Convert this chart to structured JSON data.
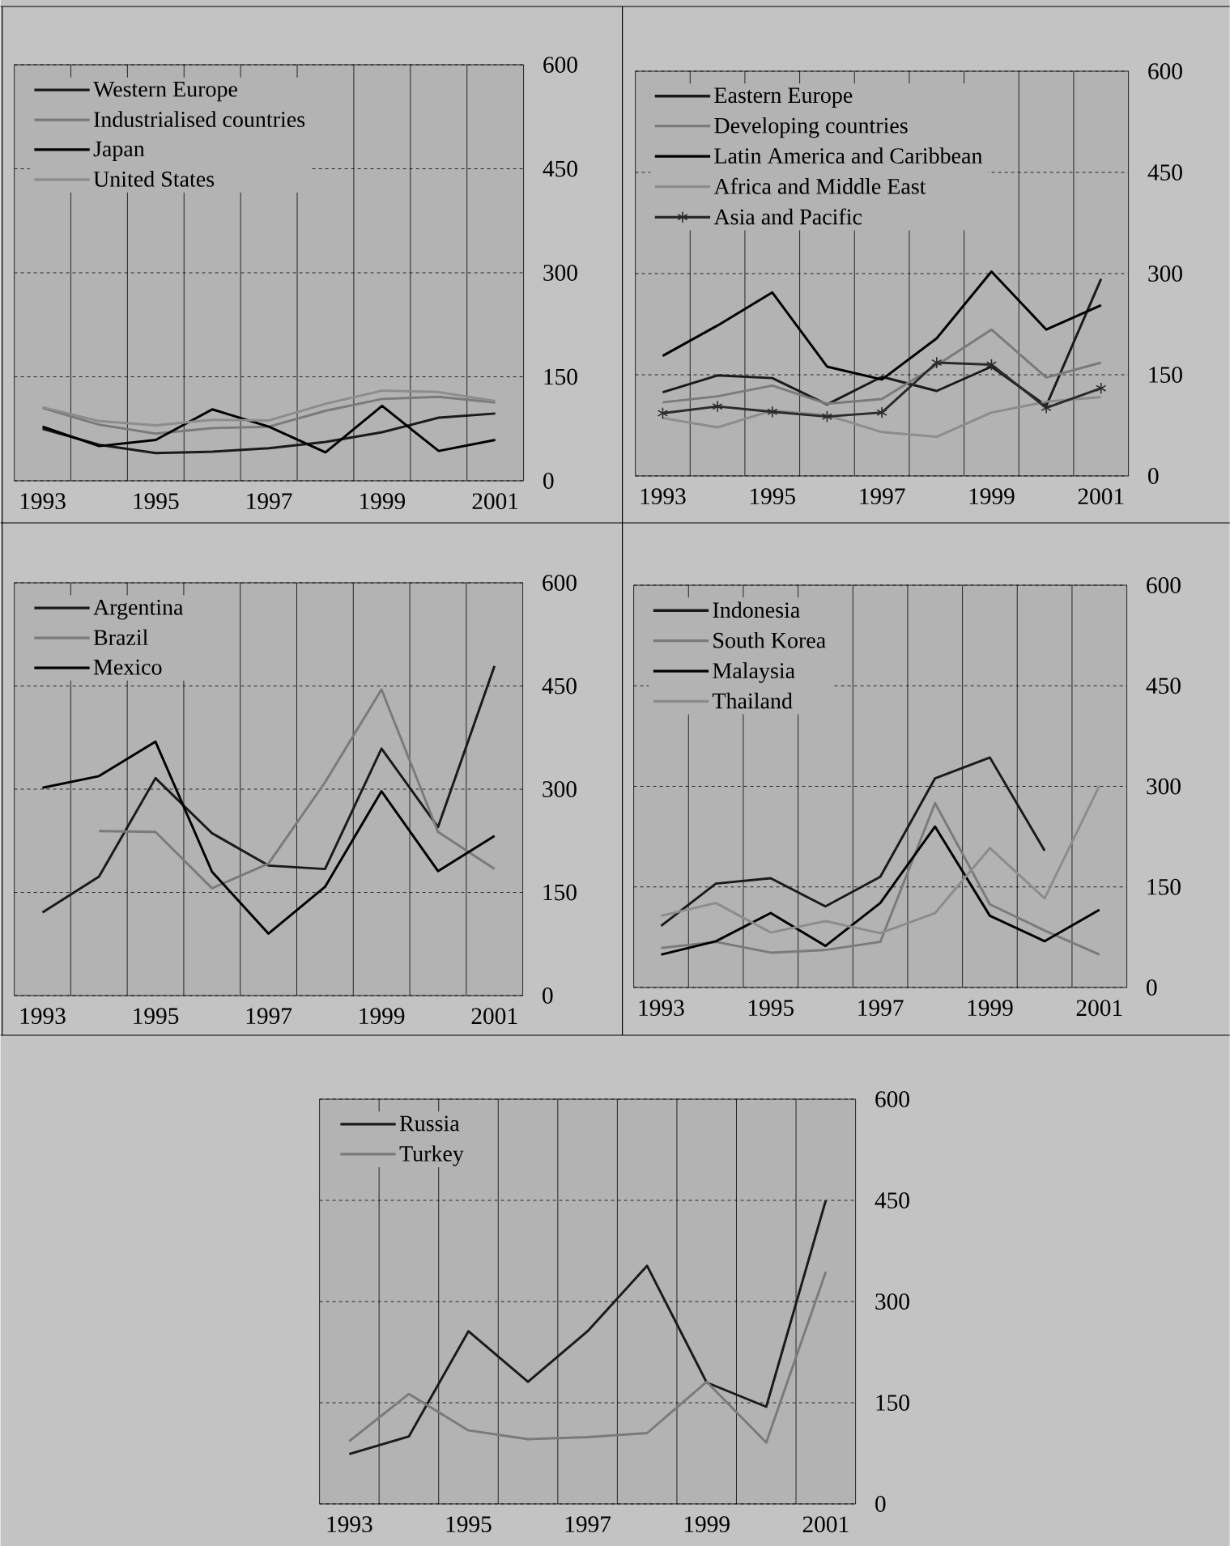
{
  "chart_data": [
    {
      "type": "line",
      "x": [
        1993,
        1994,
        1995,
        1996,
        1997,
        1998,
        1999,
        2000,
        2001
      ],
      "xlim": [
        1992.5,
        2001.5
      ],
      "ylim": [
        0,
        600
      ],
      "xticks": [
        1993,
        1995,
        1997,
        1999,
        2001,
        {
          "value": 1993.5,
          "label": null
        },
        {
          "value": 1994.5,
          "label": null
        },
        {
          "value": 1995.5,
          "label": null
        },
        {
          "value": 1996.5,
          "label": null
        },
        {
          "value": 1997.5,
          "label": null
        },
        {
          "value": 1998.5,
          "label": null
        },
        {
          "value": 1999.5,
          "label": null
        },
        {
          "value": 2000.5,
          "label": null
        }
      ],
      "yticks": [
        0,
        150,
        300,
        450,
        600
      ],
      "grid": true,
      "legend": "top left",
      "marker": "none",
      "series": [
        {
          "name": "Western Europe",
          "color": "#1a1a1a",
          "values": [
            75,
            52,
            40,
            42,
            47,
            56,
            70,
            91,
            97
          ]
        },
        {
          "name": "Industrialised countries",
          "color": "#7a7a7a",
          "values": [
            105,
            81,
            68,
            76,
            78,
            101,
            118,
            121,
            113
          ]
        },
        {
          "name": "Japan",
          "color": "#000000",
          "values": [
            78,
            50,
            59,
            103,
            78,
            41,
            108,
            43,
            59
          ]
        },
        {
          "name": "United States",
          "color": "#8c8c8c",
          "values": [
            106,
            86,
            80,
            88,
            87,
            111,
            130,
            128,
            115
          ]
        }
      ]
    },
    {
      "type": "line",
      "x": [
        1993,
        1994,
        1995,
        1996,
        1997,
        1998,
        1999,
        2000,
        2001
      ],
      "xlim": [
        1992.5,
        2001.5
      ],
      "ylim": [
        0,
        600
      ],
      "xticks": [
        1993,
        1995,
        1997,
        1999,
        2001,
        {
          "value": 1993.5,
          "label": null
        },
        {
          "value": 1994.5,
          "label": null
        },
        {
          "value": 1995.5,
          "label": null
        },
        {
          "value": 1996.5,
          "label": null
        },
        {
          "value": 1997.5,
          "label": null
        },
        {
          "value": 1998.5,
          "label": null
        },
        {
          "value": 1999.5,
          "label": null
        },
        {
          "value": 2000.5,
          "label": null
        }
      ],
      "yticks": [
        0,
        150,
        300,
        450,
        600
      ],
      "grid": true,
      "legend": "top left",
      "marker": "none",
      "series": [
        {
          "name": "Eastern Europe",
          "color": "#1a1a1a",
          "values": [
            124,
            149,
            145,
            106,
            147,
            126,
            162,
            104,
            292
          ]
        },
        {
          "name": "Developing countries",
          "color": "#7a7a7a",
          "values": [
            109,
            118,
            134,
            107,
            114,
            164,
            217,
            146,
            168
          ]
        },
        {
          "name": "Latin America and Caribbean",
          "color": "#000000",
          "values": [
            178,
            223,
            272,
            162,
            143,
            204,
            303,
            217,
            253
          ]
        },
        {
          "name": "Africa and Middle East",
          "color": "#8c8c8c",
          "values": [
            86,
            72,
            97,
            90,
            65,
            58,
            94,
            110,
            117
          ]
        },
        {
          "name": "Asia and Pacific",
          "color": "#2a2a2a",
          "marker": "cross",
          "values": [
            93,
            103,
            95,
            88,
            94,
            168,
            165,
            101,
            130
          ]
        }
      ]
    },
    {
      "type": "line",
      "x": [
        1993,
        1994,
        1995,
        1996,
        1997,
        1998,
        1999,
        2000,
        2001
      ],
      "xlim": [
        1992.5,
        2001.5
      ],
      "ylim": [
        0,
        600
      ],
      "xticks": [
        1993,
        1995,
        1997,
        1999,
        2001,
        {
          "value": 1993.5,
          "label": null
        },
        {
          "value": 1994.5,
          "label": null
        },
        {
          "value": 1995.5,
          "label": null
        },
        {
          "value": 1996.5,
          "label": null
        },
        {
          "value": 1997.5,
          "label": null
        },
        {
          "value": 1998.5,
          "label": null
        },
        {
          "value": 1999.5,
          "label": null
        },
        {
          "value": 2000.5,
          "label": null
        }
      ],
      "yticks": [
        0,
        150,
        300,
        450,
        600
      ],
      "grid": true,
      "legend": "top left",
      "marker": "none",
      "series": [
        {
          "name": "Argentina",
          "color": "#1a1a1a",
          "values": [
            121,
            173,
            316,
            236,
            189,
            184,
            359,
            245,
            479
          ]
        },
        {
          "name": "Brazil",
          "color": "#7a7a7a",
          "values": [
            null,
            239,
            238,
            156,
            192,
            310,
            445,
            238,
            184
          ]
        },
        {
          "name": "Mexico",
          "color": "#000000",
          "values": [
            302,
            319,
            369,
            180,
            90,
            158,
            297,
            181,
            232
          ]
        }
      ]
    },
    {
      "type": "line",
      "x": [
        1993,
        1994,
        1995,
        1996,
        1997,
        1998,
        1999,
        2000,
        2001
      ],
      "xlim": [
        1992.5,
        2001.5
      ],
      "ylim": [
        0,
        600
      ],
      "xticks": [
        1993,
        1995,
        1997,
        1999,
        2001,
        {
          "value": 1993.5,
          "label": null
        },
        {
          "value": 1994.5,
          "label": null
        },
        {
          "value": 1995.5,
          "label": null
        },
        {
          "value": 1996.5,
          "label": null
        },
        {
          "value": 1997.5,
          "label": null
        },
        {
          "value": 1998.5,
          "label": null
        },
        {
          "value": 1999.5,
          "label": null
        },
        {
          "value": 2000.5,
          "label": null
        }
      ],
      "yticks": [
        0,
        150,
        300,
        450,
        600
      ],
      "grid": true,
      "legend": "top left",
      "marker": "none",
      "series": [
        {
          "name": "Indonesia",
          "color": "#1a1a1a",
          "values": [
            92,
            155,
            163,
            121,
            165,
            312,
            343,
            204,
            null
          ]
        },
        {
          "name": "South Korea",
          "color": "#7a7a7a",
          "values": [
            59,
            68,
            52,
            56,
            68,
            275,
            124,
            85,
            49
          ]
        },
        {
          "name": "Malaysia",
          "color": "#000000",
          "values": [
            49,
            69,
            111,
            62,
            126,
            240,
            107,
            69,
            116
          ]
        },
        {
          "name": "Thailand",
          "color": "#8c8c8c",
          "values": [
            107,
            126,
            82,
            99,
            81,
            111,
            208,
            133,
            301
          ]
        }
      ]
    },
    {
      "type": "line",
      "x": [
        1993,
        1994,
        1995,
        1996,
        1997,
        1998,
        1999,
        2000,
        2001
      ],
      "xlim": [
        1992.5,
        2001.5
      ],
      "ylim": [
        0,
        600
      ],
      "xticks": [
        1993,
        1995,
        1997,
        1999,
        2001,
        {
          "value": 1993.5,
          "label": null
        },
        {
          "value": 1994.5,
          "label": null
        },
        {
          "value": 1995.5,
          "label": null
        },
        {
          "value": 1996.5,
          "label": null
        },
        {
          "value": 1997.5,
          "label": null
        },
        {
          "value": 1998.5,
          "label": null
        },
        {
          "value": 1999.5,
          "label": null
        },
        {
          "value": 2000.5,
          "label": null
        }
      ],
      "yticks": [
        0,
        150,
        300,
        450,
        600
      ],
      "grid": true,
      "legend": "top left",
      "marker": "none",
      "series": [
        {
          "name": "Russia",
          "color": "#1a1a1a",
          "values": [
            74,
            100,
            256,
            181,
            256,
            353,
            180,
            144,
            450
          ]
        },
        {
          "name": "Turkey",
          "color": "#7a7a7a",
          "values": [
            93,
            163,
            109,
            96,
            99,
            105,
            181,
            91,
            344
          ]
        }
      ]
    }
  ]
}
